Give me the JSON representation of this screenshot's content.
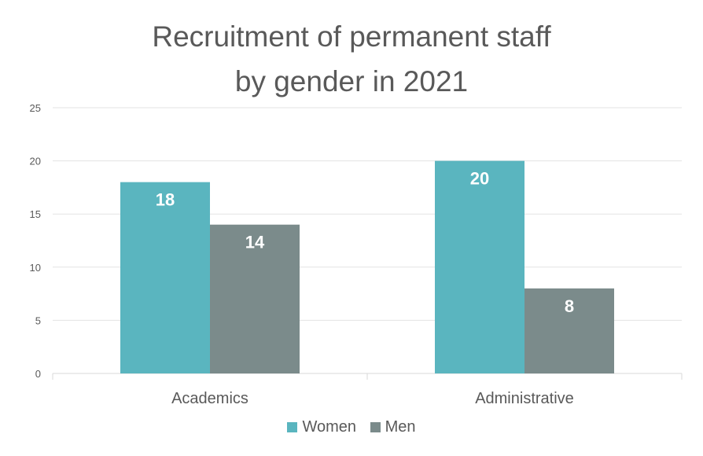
{
  "chart_data": {
    "type": "bar",
    "title_lines": [
      "Recruitment of permanent staff",
      "by gender in 2021"
    ],
    "categories": [
      "Academics",
      "Administrative"
    ],
    "series": [
      {
        "name": "Women",
        "values": [
          18,
          20
        ],
        "color": "#5ab5bf"
      },
      {
        "name": "Men",
        "values": [
          14,
          8
        ],
        "color": "#7b8b8b"
      }
    ],
    "ylim": [
      0,
      25
    ],
    "yticks": [
      "0",
      "5",
      "10",
      "15",
      "20",
      "25"
    ],
    "grid": true,
    "legend_position": "bottom"
  }
}
